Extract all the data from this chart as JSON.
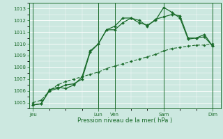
{
  "xlabel": "Pression niveau de la mer( hPa )",
  "bg_color": "#cce8e0",
  "line_color": "#1a6b2a",
  "ylim": [
    1004.5,
    1013.5
  ],
  "yticks": [
    1005,
    1006,
    1007,
    1008,
    1009,
    1010,
    1011,
    1012,
    1013
  ],
  "day_labels": [
    "Jeu",
    "Lun",
    "Ven",
    "Sam",
    "Dim"
  ],
  "day_positions": [
    0,
    8,
    10,
    16,
    22
  ],
  "xlim": [
    -0.5,
    23
  ],
  "series1_x": [
    0,
    1,
    2,
    3,
    4,
    5,
    6,
    7,
    8,
    9,
    10,
    11,
    12,
    13,
    14,
    15,
    16,
    17,
    18,
    19,
    20,
    21,
    22
  ],
  "series1_y": [
    1004.8,
    1004.9,
    1006.0,
    1006.2,
    1006.5,
    1006.6,
    1007.0,
    1009.3,
    1010.0,
    1011.2,
    1011.5,
    1012.2,
    1012.2,
    1011.8,
    1011.6,
    1012.0,
    1013.1,
    1012.7,
    1012.2,
    1010.4,
    1010.5,
    1010.8,
    1009.8
  ],
  "series2_x": [
    0,
    1,
    2,
    3,
    4,
    5,
    6,
    7,
    8,
    9,
    10,
    11,
    12,
    13,
    14,
    15,
    16,
    17,
    18,
    19,
    20,
    21,
    22
  ],
  "series2_y": [
    1004.8,
    1004.9,
    1006.1,
    1006.3,
    1006.2,
    1006.5,
    1007.2,
    1009.4,
    1010.0,
    1011.2,
    1011.2,
    1011.8,
    1012.2,
    1012.0,
    1011.5,
    1012.1,
    1012.3,
    1012.5,
    1012.4,
    1010.5,
    1010.5,
    1010.6,
    1009.8
  ],
  "series3_x": [
    0,
    1,
    2,
    3,
    4,
    5,
    6,
    7,
    8,
    9,
    10,
    11,
    12,
    13,
    14,
    15,
    16,
    17,
    18,
    19,
    20,
    21,
    22
  ],
  "series3_y": [
    1005.0,
    1005.2,
    1006.0,
    1006.5,
    1006.8,
    1007.0,
    1007.2,
    1007.4,
    1007.6,
    1007.9,
    1008.1,
    1008.3,
    1008.5,
    1008.7,
    1008.9,
    1009.1,
    1009.4,
    1009.6,
    1009.7,
    1009.8,
    1009.9,
    1009.9,
    1010.0
  ]
}
